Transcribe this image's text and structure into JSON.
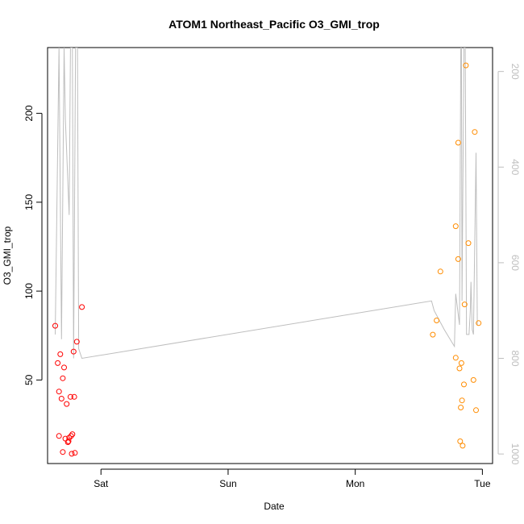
{
  "chart_data": {
    "type": "scatter",
    "title": "ATOM1 Northeast_Pacific O3_GMI_trop",
    "xlabel": "Date",
    "ylabel": "O3_GMI_trop",
    "x_ticks": [
      {
        "label": "Sat",
        "x": 0.0
      },
      {
        "label": "Sun",
        "x": 1.0
      },
      {
        "label": "Mon",
        "x": 2.0
      },
      {
        "label": "Tue",
        "x": 3.0
      }
    ],
    "xlim": [
      -0.42,
      3.08
    ],
    "ylim": [
      3,
      237
    ],
    "y_ticks": [
      50,
      100,
      150,
      200
    ],
    "y2_ticks": [
      200,
      400,
      600,
      800,
      1000
    ],
    "y2lim": [
      1020,
      150
    ],
    "grid": false,
    "colors": {
      "series1": "#ff0000",
      "series2": "#ff8c00",
      "pressure_line": "#bebebe",
      "axis": "#000000",
      "right_axis": "#bebebe"
    },
    "series": [
      {
        "points": [
          {
            "x": -0.36,
            "y": 80.5
          },
          {
            "x": -0.34,
            "y": 59.5
          },
          {
            "x": -0.33,
            "y": 43.5
          },
          {
            "x": -0.33,
            "y": 18.5
          },
          {
            "x": -0.32,
            "y": 64.5
          },
          {
            "x": -0.31,
            "y": 39.5
          },
          {
            "x": -0.3,
            "y": 51.0
          },
          {
            "x": -0.3,
            "y": 9.5
          },
          {
            "x": -0.29,
            "y": 57.0
          },
          {
            "x": -0.28,
            "y": 17.0
          },
          {
            "x": -0.27,
            "y": 36.5
          },
          {
            "x": -0.26,
            "y": 15.0
          },
          {
            "x": -0.255,
            "y": 15.5
          },
          {
            "x": -0.25,
            "y": 17.5
          },
          {
            "x": -0.24,
            "y": 40.5
          },
          {
            "x": -0.235,
            "y": 18.5
          },
          {
            "x": -0.23,
            "y": 8.5
          },
          {
            "x": -0.225,
            "y": 19.5
          },
          {
            "x": -0.215,
            "y": 66.0
          },
          {
            "x": -0.21,
            "y": 40.5
          },
          {
            "x": -0.205,
            "y": 9.0
          },
          {
            "x": -0.19,
            "y": 71.5
          },
          {
            "x": -0.15,
            "y": 91.0
          }
        ]
      },
      {
        "points": [
          {
            "x": 2.61,
            "y": 75.5
          },
          {
            "x": 2.64,
            "y": 83.5
          },
          {
            "x": 2.67,
            "y": 111.0
          },
          {
            "x": 2.79,
            "y": 136.5
          },
          {
            "x": 2.79,
            "y": 62.5
          },
          {
            "x": 2.81,
            "y": 118.0
          },
          {
            "x": 2.81,
            "y": 183.5
          },
          {
            "x": 2.82,
            "y": 56.5
          },
          {
            "x": 2.825,
            "y": 15.5
          },
          {
            "x": 2.83,
            "y": 34.5
          },
          {
            "x": 2.835,
            "y": 59.5
          },
          {
            "x": 2.84,
            "y": 38.5
          },
          {
            "x": 2.845,
            "y": 13.0
          },
          {
            "x": 2.855,
            "y": 47.5
          },
          {
            "x": 2.86,
            "y": 92.5
          },
          {
            "x": 2.87,
            "y": 227.0
          },
          {
            "x": 2.89,
            "y": 127.0
          },
          {
            "x": 2.93,
            "y": 50.0
          },
          {
            "x": 2.94,
            "y": 189.5
          },
          {
            "x": 2.95,
            "y": 33.0
          },
          {
            "x": 2.97,
            "y": 82.0
          }
        ]
      }
    ],
    "pressure_line": [
      {
        "x": -0.36,
        "p": 750
      },
      {
        "x": -0.33,
        "p": 150
      },
      {
        "x": -0.31,
        "p": 760
      },
      {
        "x": -0.29,
        "p": 150
      },
      {
        "x": -0.28,
        "p": 300
      },
      {
        "x": -0.25,
        "p": 500
      },
      {
        "x": -0.24,
        "p": 150
      },
      {
        "x": -0.225,
        "p": 150
      },
      {
        "x": -0.215,
        "p": 800
      },
      {
        "x": -0.2,
        "p": 150
      },
      {
        "x": -0.185,
        "p": 150
      },
      {
        "x": -0.175,
        "p": 780
      },
      {
        "x": -0.15,
        "p": 800
      },
      {
        "x": 2.6,
        "p": 680
      },
      {
        "x": 2.62,
        "p": 700
      },
      {
        "x": 2.7,
        "p": 740
      },
      {
        "x": 2.78,
        "p": 775
      },
      {
        "x": 2.79,
        "p": 665
      },
      {
        "x": 2.82,
        "p": 730
      },
      {
        "x": 2.83,
        "p": 150
      },
      {
        "x": 2.835,
        "p": 150
      },
      {
        "x": 2.84,
        "p": 680
      },
      {
        "x": 2.855,
        "p": 150
      },
      {
        "x": 2.865,
        "p": 150
      },
      {
        "x": 2.875,
        "p": 750
      },
      {
        "x": 2.895,
        "p": 750
      },
      {
        "x": 2.905,
        "p": 700
      },
      {
        "x": 2.91,
        "p": 640
      },
      {
        "x": 2.92,
        "p": 740
      },
      {
        "x": 2.93,
        "p": 750
      },
      {
        "x": 2.95,
        "p": 370
      },
      {
        "x": 2.96,
        "p": 730
      }
    ]
  }
}
